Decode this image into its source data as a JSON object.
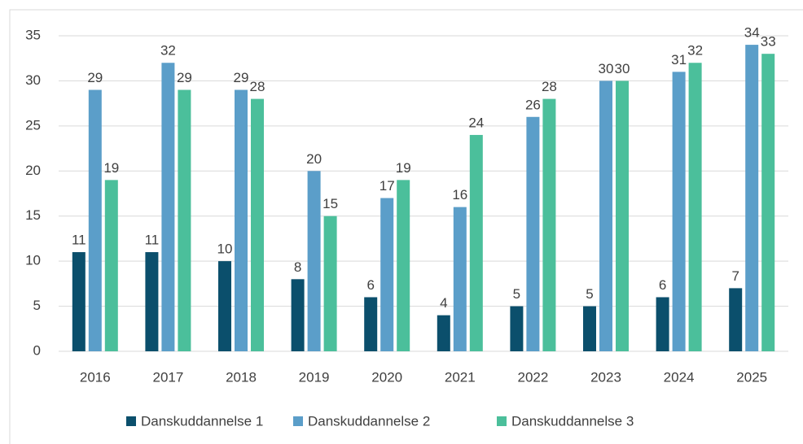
{
  "chart_data": {
    "type": "bar",
    "categories": [
      "2016",
      "2017",
      "2018",
      "2019",
      "2020",
      "2021",
      "2022",
      "2023",
      "2024",
      "2025"
    ],
    "series": [
      {
        "name": "Danskuddannelse 1",
        "color": "#0b4f6c",
        "values": [
          11,
          11,
          10,
          8,
          6,
          4,
          5,
          5,
          6,
          7
        ]
      },
      {
        "name": "Danskuddannelse 2",
        "color": "#5b9ec9",
        "values": [
          29,
          32,
          29,
          20,
          17,
          16,
          26,
          30,
          31,
          34
        ]
      },
      {
        "name": "Danskuddannelse 3",
        "color": "#4bbf9b",
        "values": [
          19,
          29,
          28,
          15,
          19,
          24,
          28,
          30,
          32,
          33
        ]
      }
    ],
    "ylim": [
      0,
      35
    ],
    "yticks": [
      0,
      5,
      10,
      15,
      20,
      25,
      30,
      35
    ],
    "grid": true,
    "legend": "bottom"
  }
}
